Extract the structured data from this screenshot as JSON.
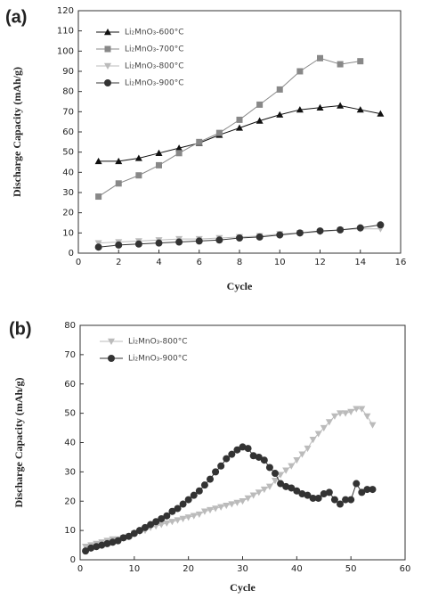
{
  "chart_data": [
    {
      "type": "line",
      "panel_label": "(a)",
      "xlabel": "Cycle",
      "ylabel": "Discharge Capacity (mAh/g)",
      "x": [
        1,
        2,
        3,
        4,
        5,
        6,
        7,
        8,
        9,
        10,
        11,
        12,
        13,
        14,
        15
      ],
      "xlim": [
        0,
        16
      ],
      "xticks": [
        0,
        2,
        4,
        6,
        8,
        10,
        12,
        14,
        16
      ],
      "ylim": [
        0,
        120
      ],
      "yticks": [
        0,
        10,
        20,
        30,
        40,
        50,
        60,
        70,
        80,
        90,
        100,
        110,
        120
      ],
      "legend": "upper left",
      "series": [
        {
          "name": "Li₂MnO₃-600°C",
          "color": "#111111",
          "marker": "triangle-up",
          "values": [
            45.5,
            45.5,
            47,
            49.5,
            52,
            54.5,
            58.5,
            62,
            65.5,
            68.5,
            71,
            72,
            73,
            71,
            69
          ]
        },
        {
          "name": "Li₂MnO₃-700°C",
          "color": "#888888",
          "marker": "square",
          "values": [
            28,
            34.5,
            38.5,
            43.5,
            49.5,
            55,
            59.5,
            66,
            73.5,
            81,
            90,
            96.5,
            93.5,
            95,
            null
          ]
        },
        {
          "name": "Li₂MnO₃-800°C",
          "color": "#bbbbbb",
          "marker": "triangle-down",
          "values": [
            5,
            5.5,
            6,
            6.5,
            7,
            7,
            7.5,
            8,
            8.5,
            9.5,
            10,
            10.5,
            11.5,
            12,
            12
          ]
        },
        {
          "name": "Li₂MnO₃-900°C",
          "color": "#333333",
          "marker": "circle",
          "values": [
            3,
            4,
            4.5,
            5,
            5.5,
            6,
            6.5,
            7.5,
            8,
            9,
            10,
            11,
            11.5,
            12.5,
            14
          ]
        }
      ]
    },
    {
      "type": "line",
      "panel_label": "(b)",
      "xlabel": "Cycle",
      "ylabel": "Discharge Capacity (mAh/g)",
      "x": [
        1,
        2,
        3,
        4,
        5,
        6,
        7,
        8,
        9,
        10,
        11,
        12,
        13,
        14,
        15,
        16,
        17,
        18,
        19,
        20,
        21,
        22,
        23,
        24,
        25,
        26,
        27,
        28,
        29,
        30,
        31,
        32,
        33,
        34,
        35,
        36,
        37,
        38,
        39,
        40,
        41,
        42,
        43,
        44,
        45,
        46,
        47,
        48,
        49,
        50,
        51,
        52,
        53,
        54
      ],
      "xlim": [
        0,
        60
      ],
      "xticks": [
        0,
        10,
        20,
        30,
        40,
        50,
        60
      ],
      "ylim": [
        0,
        80
      ],
      "yticks": [
        0,
        10,
        20,
        30,
        40,
        50,
        60,
        70,
        80
      ],
      "legend": "upper left",
      "series": [
        {
          "name": "Li₂MnO₃-800°C",
          "color": "#bbbbbb",
          "marker": "triangle-down",
          "values": [
            4.5,
            5,
            5.5,
            6,
            6.5,
            7,
            7,
            7.5,
            8,
            9,
            9.5,
            10,
            11,
            11.5,
            12,
            12.5,
            13,
            13.5,
            14,
            14.5,
            15,
            15.5,
            16.5,
            17,
            17.5,
            18,
            18.5,
            19,
            19.5,
            20,
            21,
            22,
            23,
            24,
            25,
            27,
            29,
            30.5,
            32,
            34,
            36,
            38,
            41,
            43,
            45,
            47,
            49,
            50,
            50,
            50.5,
            51.5,
            51.5,
            49,
            46
          ]
        },
        {
          "name": "Li₂MnO₃-900°C",
          "color": "#333333",
          "marker": "circle",
          "values": [
            3,
            4,
            4.5,
            5,
            5.5,
            6,
            6.5,
            7.5,
            8,
            9,
            10,
            11,
            12,
            13,
            14,
            15,
            16.5,
            17.5,
            19,
            20.5,
            22,
            23.5,
            25.5,
            27.5,
            30,
            32,
            34.5,
            36,
            37.5,
            38.5,
            38,
            35.5,
            35,
            34,
            31.5,
            29.5,
            26,
            25,
            24.5,
            23.5,
            22.5,
            22,
            21,
            21,
            22.5,
            23,
            20.5,
            19,
            20.5,
            20.5,
            26,
            23,
            24,
            24
          ]
        }
      ]
    }
  ]
}
